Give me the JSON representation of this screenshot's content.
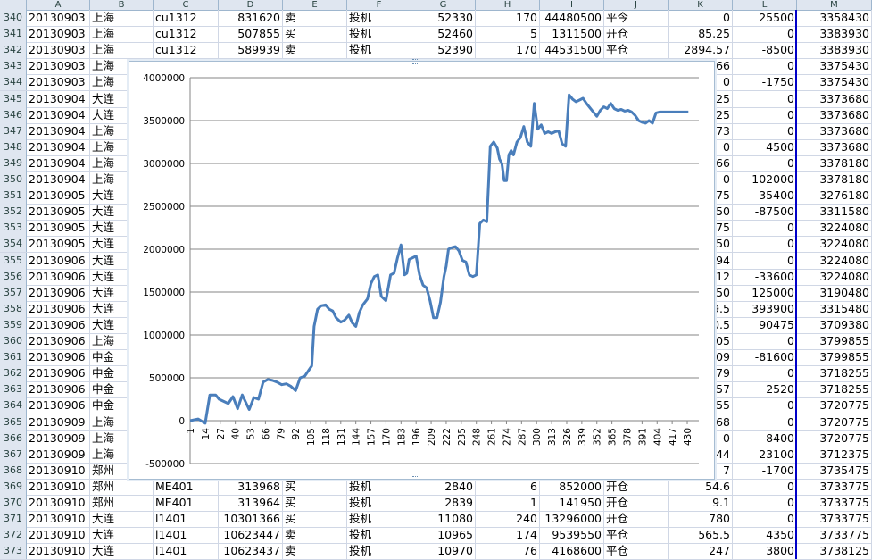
{
  "columns": [
    "A",
    "B",
    "C",
    "D",
    "E",
    "F",
    "G",
    "H",
    "I",
    "J",
    "K",
    "L",
    "M"
  ],
  "rows": [
    [
      "340",
      "20130903",
      "上海",
      "cu1312",
      "831620",
      "卖",
      "投机",
      "52330",
      "170",
      "44480500",
      "平今",
      "0",
      "25500",
      "3358430"
    ],
    [
      "341",
      "20130903",
      "上海",
      "cu1312",
      "507855",
      "买",
      "投机",
      "52460",
      "5",
      "1311500",
      "开仓",
      "85.25",
      "0",
      "3383930"
    ],
    [
      "342",
      "20130903",
      "上海",
      "cu1312",
      "589939",
      "卖",
      "投机",
      "52390",
      "170",
      "44531500",
      "平仓",
      "2894.57",
      "-8500",
      "3383930"
    ],
    [
      "343",
      "20130903",
      "上海",
      "",
      "",
      "",
      "",
      "",
      "",
      "",
      "",
      "66",
      "0",
      "3375430"
    ],
    [
      "344",
      "20130903",
      "上海",
      "",
      "",
      "",
      "",
      "",
      "",
      "",
      "",
      "0",
      "-1750",
      "3375430"
    ],
    [
      "345",
      "20130904",
      "大连",
      "",
      "",
      "",
      "",
      "",
      "",
      "",
      "",
      "25",
      "0",
      "3373680"
    ],
    [
      "346",
      "20130904",
      "大连",
      "",
      "",
      "",
      "",
      "",
      "",
      "",
      "",
      "25",
      "0",
      "3373680"
    ],
    [
      "347",
      "20130904",
      "上海",
      "",
      "",
      "",
      "",
      "",
      "",
      "",
      "",
      "73",
      "0",
      "3373680"
    ],
    [
      "348",
      "20130904",
      "上海",
      "",
      "",
      "",
      "",
      "",
      "",
      "",
      "",
      "0",
      "4500",
      "3373680"
    ],
    [
      "349",
      "20130904",
      "上海",
      "",
      "",
      "",
      "",
      "",
      "",
      "",
      "",
      "66",
      "0",
      "3378180"
    ],
    [
      "350",
      "20130904",
      "上海",
      "",
      "",
      "",
      "",
      "",
      "",
      "",
      "",
      "0",
      "-102000",
      "3378180"
    ],
    [
      "351",
      "20130905",
      "大连",
      "",
      "",
      "",
      "",
      "",
      "",
      "",
      "",
      "75",
      "35400",
      "3276180"
    ],
    [
      "352",
      "20130905",
      "大连",
      "",
      "",
      "",
      "",
      "",
      "",
      "",
      "",
      "50",
      "-87500",
      "3311580"
    ],
    [
      "353",
      "20130905",
      "大连",
      "",
      "",
      "",
      "",
      "",
      "",
      "",
      "",
      "75",
      "0",
      "3224080"
    ],
    [
      "354",
      "20130905",
      "大连",
      "",
      "",
      "",
      "",
      "",
      "",
      "",
      "",
      "50",
      "0",
      "3224080"
    ],
    [
      "355",
      "20130906",
      "大连",
      "",
      "",
      "",
      "",
      "",
      "",
      "",
      "",
      "94",
      "0",
      "3224080"
    ],
    [
      "356",
      "20130906",
      "大连",
      "",
      "",
      "",
      "",
      "",
      "",
      "",
      "",
      "12",
      "-33600",
      "3224080"
    ],
    [
      "357",
      "20130906",
      "大连",
      "",
      "",
      "",
      "",
      "",
      "",
      "",
      "",
      "50",
      "125000",
      "3190480"
    ],
    [
      "358",
      "20130906",
      "大连",
      "",
      "",
      "",
      "",
      "",
      "",
      "",
      "",
      "9.5",
      "393900",
      "3315480"
    ],
    [
      "359",
      "20130906",
      "大连",
      "",
      "",
      "",
      "",
      "",
      "",
      "",
      "",
      "0.5",
      "90475",
      "3709380"
    ],
    [
      "360",
      "20130906",
      "上海",
      "",
      "",
      "",
      "",
      "",
      "",
      "",
      "",
      "05",
      "0",
      "3799855"
    ],
    [
      "361",
      "20130906",
      "中金",
      "",
      "",
      "",
      "",
      "",
      "",
      "",
      "",
      "09",
      "-81600",
      "3799855"
    ],
    [
      "362",
      "20130906",
      "中金",
      "",
      "",
      "",
      "",
      "",
      "",
      "",
      "",
      "79",
      "0",
      "3718255"
    ],
    [
      "363",
      "20130906",
      "中金",
      "",
      "",
      "",
      "",
      "",
      "",
      "",
      "",
      "57",
      "2520",
      "3718255"
    ],
    [
      "364",
      "20130906",
      "中金",
      "",
      "",
      "",
      "",
      "",
      "",
      "",
      "",
      "55",
      "0",
      "3720775"
    ],
    [
      "365",
      "20130909",
      "上海",
      "",
      "",
      "",
      "",
      "",
      "",
      "",
      "",
      "68",
      "0",
      "3720775"
    ],
    [
      "366",
      "20130909",
      "上海",
      "",
      "",
      "",
      "",
      "",
      "",
      "",
      "",
      "0",
      "-8400",
      "3720775"
    ],
    [
      "367",
      "20130909",
      "上海",
      "",
      "",
      "",
      "",
      "",
      "",
      "",
      "",
      "44",
      "23100",
      "3712375"
    ],
    [
      "368",
      "20130910",
      "郑州",
      "",
      "",
      "",
      "",
      "",
      "",
      "",
      "",
      "7",
      "-1700",
      "3735475"
    ],
    [
      "369",
      "20130910",
      "郑州",
      "ME401",
      "313968",
      "买",
      "投机",
      "2840",
      "6",
      "852000",
      "开仓",
      "54.6",
      "0",
      "3733775"
    ],
    [
      "370",
      "20130910",
      "郑州",
      "ME401",
      "313964",
      "买",
      "投机",
      "2839",
      "1",
      "141950",
      "开仓",
      "9.1",
      "0",
      "3733775"
    ],
    [
      "371",
      "20130910",
      "大连",
      "l1401",
      "10301366",
      "买",
      "投机",
      "11080",
      "240",
      "13296000",
      "开仓",
      "780",
      "0",
      "3733775"
    ],
    [
      "372",
      "20130910",
      "大连",
      "l1401",
      "10623447",
      "卖",
      "投机",
      "10965",
      "174",
      "9539550",
      "平仓",
      "565.5",
      "4350",
      "3733775"
    ],
    [
      "373",
      "20130910",
      "大连",
      "l1401",
      "10623437",
      "卖",
      "投机",
      "10970",
      "76",
      "4168600",
      "平仓",
      "247",
      "3800",
      "3738125"
    ]
  ],
  "chart_data": {
    "type": "line",
    "title": "",
    "xlabel": "",
    "ylabel": "",
    "ylim": [
      -500000,
      4000000
    ],
    "y_ticks": [
      "4000000",
      "3500000",
      "3000000",
      "2500000",
      "2000000",
      "1500000",
      "1000000",
      "500000",
      "0",
      "-500000"
    ],
    "x_tick_labels": [
      "1",
      "14",
      "27",
      "40",
      "53",
      "66",
      "79",
      "92",
      "105",
      "118",
      "131",
      "144",
      "157",
      "170",
      "183",
      "196",
      "209",
      "222",
      "235",
      "248",
      "261",
      "274",
      "287",
      "300",
      "313",
      "326",
      "339",
      "352",
      "365",
      "378",
      "391",
      "404",
      "417",
      "430"
    ],
    "series_color": "#4a7ebb",
    "x": [
      1,
      8,
      14,
      18,
      23,
      26,
      34,
      38,
      42,
      46,
      52,
      56,
      60,
      64,
      68,
      72,
      76,
      80,
      84,
      88,
      92,
      96,
      100,
      102,
      104,
      105,
      106,
      108,
      111,
      114,
      118,
      121,
      124,
      127,
      131,
      134,
      138,
      141,
      144,
      147,
      150,
      154,
      157,
      160,
      163,
      166,
      170,
      174,
      177,
      180,
      183,
      186,
      188,
      190,
      193,
      196,
      199,
      202,
      205,
      208,
      211,
      214,
      217,
      220,
      222,
      224,
      227,
      230,
      233,
      236,
      239,
      242,
      245,
      248,
      251,
      254,
      257,
      260,
      263,
      266,
      268,
      270,
      272,
      274,
      276,
      278,
      280,
      283,
      286,
      289,
      292,
      295,
      298,
      301,
      304,
      307,
      310,
      313,
      316,
      319,
      322,
      325,
      328,
      331,
      334,
      337,
      340,
      343,
      346,
      349,
      352,
      355,
      358,
      361,
      364,
      367,
      370,
      373,
      376,
      379,
      382,
      385,
      388,
      391,
      394,
      397,
      400,
      403,
      406,
      409,
      412,
      415,
      418,
      421,
      424,
      427,
      429,
      431
    ],
    "values": [
      0,
      20000,
      -30000,
      300000,
      300000,
      250000,
      200000,
      280000,
      140000,
      300000,
      130000,
      270000,
      250000,
      450000,
      480000,
      470000,
      450000,
      420000,
      430000,
      400000,
      350000,
      500000,
      520000,
      560000,
      600000,
      620000,
      640000,
      1100000,
      1300000,
      1340000,
      1350000,
      1300000,
      1280000,
      1200000,
      1150000,
      1170000,
      1230000,
      1140000,
      1100000,
      1260000,
      1350000,
      1420000,
      1600000,
      1680000,
      1700000,
      1450000,
      1400000,
      1700000,
      1720000,
      1900000,
      2050000,
      1700000,
      1720000,
      1880000,
      1900000,
      1920000,
      1700000,
      1580000,
      1550000,
      1400000,
      1200000,
      1200000,
      1380000,
      1680000,
      1800000,
      2000000,
      2020000,
      2030000,
      1980000,
      1870000,
      1850000,
      1700000,
      1680000,
      1700000,
      2300000,
      2340000,
      2320000,
      3200000,
      3250000,
      3180000,
      3050000,
      3000000,
      2800000,
      2800000,
      3100000,
      3150000,
      3100000,
      3250000,
      3300000,
      3430000,
      3250000,
      3200000,
      3700000,
      3400000,
      3450000,
      3350000,
      3370000,
      3350000,
      3370000,
      3380000,
      3230000,
      3200000,
      3800000,
      3750000,
      3720000,
      3740000,
      3760000,
      3700000,
      3650000,
      3600000,
      3550000,
      3620000,
      3660000,
      3640000,
      3700000,
      3640000,
      3620000,
      3630000,
      3610000,
      3620000,
      3600000,
      3560000,
      3500000,
      3480000,
      3470000,
      3500000,
      3470000,
      3590000,
      3600000,
      3600000,
      3600000,
      3600000,
      3600000,
      3600000,
      3600000,
      3600000,
      3600000,
      3600000
    ]
  }
}
